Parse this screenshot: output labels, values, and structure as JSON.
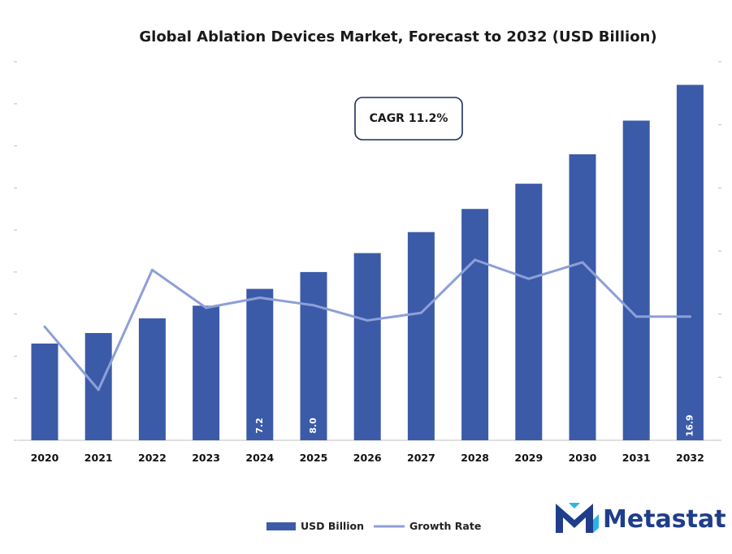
{
  "chart_data": {
    "type": "bar",
    "title": "Global Ablation Devices Market, Forecast to 2032 (USD Billion)",
    "categories": [
      "2020",
      "2021",
      "2022",
      "2023",
      "2024",
      "2025",
      "2026",
      "2027",
      "2028",
      "2029",
      "2030",
      "2031",
      "2032"
    ],
    "series": [
      {
        "name": "USD Billion",
        "type": "bar",
        "axis": "left",
        "color": "#3b5ba9",
        "values": [
          4.6,
          5.1,
          5.8,
          6.4,
          7.2,
          8.0,
          8.9,
          9.9,
          11.0,
          12.2,
          13.6,
          15.2,
          16.9
        ],
        "data_labels": [
          "",
          "",
          "",
          "",
          "7.2",
          "8.0",
          "",
          "",
          "",
          "",
          "",
          "",
          "16.9"
        ]
      },
      {
        "name": "Growth Rate",
        "type": "line",
        "axis": "right",
        "color": "#8e9fd8",
        "values": [
          9.0,
          4.0,
          13.5,
          10.5,
          11.3,
          10.7,
          9.5,
          10.1,
          14.3,
          12.8,
          14.1,
          9.8,
          9.8
        ]
      }
    ],
    "ylim_left": [
      0,
      18
    ],
    "ylim_right": [
      0,
      30
    ],
    "grid": false,
    "legend_position": "bottom",
    "annotation": "CAGR 11.2%"
  },
  "brand": {
    "name": "Metastat",
    "logo_icon": "metastat-m-icon",
    "color": "#1f3d8a",
    "accent": "#2bb3e6"
  }
}
